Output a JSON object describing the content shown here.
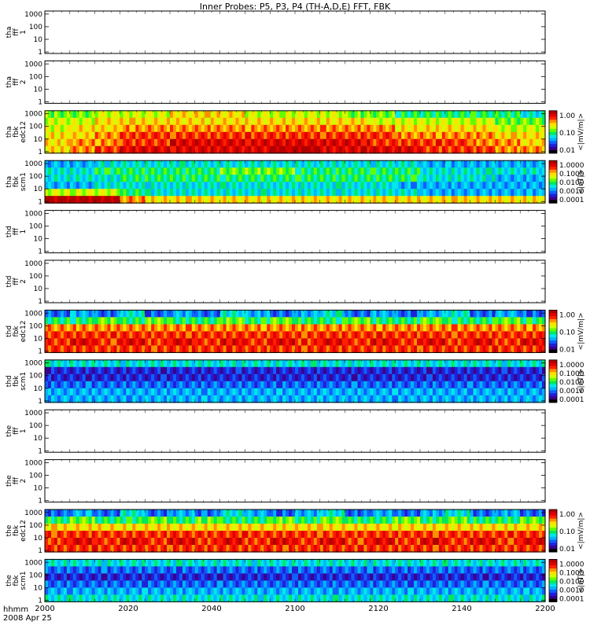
{
  "title": "Inner Probes: P5, P3, P4 (TH-A,D,E) FFT, FBK",
  "time_axis": {
    "ticks": [
      "2000",
      "2020",
      "2040",
      "2100",
      "2120",
      "2140",
      "2200"
    ],
    "unit_label": "hhmm",
    "date_label": "2008 Apr 25"
  },
  "y_ticks": [
    "1",
    "10",
    "100",
    "1000"
  ],
  "colorbars": {
    "edc12": {
      "ticks": [
        "1.00",
        "0.10",
        "0.01"
      ],
      "label": "<|mV/m|>"
    },
    "scm1": {
      "ticks": [
        "1.0000",
        "0.1000",
        "0.0100",
        "0.0010",
        "0.0001"
      ],
      "label": "<|nT|>"
    }
  },
  "palette": [
    "#000000",
    "#3a0090",
    "#2020d8",
    "#1060ff",
    "#00b4ff",
    "#00e8e8",
    "#00e860",
    "#60ff00",
    "#d0ff00",
    "#ffe000",
    "#ff9000",
    "#ff2000",
    "#e00000",
    "#b00000"
  ],
  "panels": [
    {
      "label": [
        "tha",
        "fff",
        "1"
      ],
      "kind": "empty"
    },
    {
      "label": [
        "tha",
        "fff",
        "2"
      ],
      "kind": "empty"
    },
    {
      "label": [
        "tha",
        "fbk",
        "edc12"
      ],
      "kind": "spectrogram",
      "colorbar": "edc12"
    },
    {
      "label": [
        "tha",
        "fbk",
        "scm1"
      ],
      "kind": "spectrogram",
      "colorbar": "scm1"
    },
    {
      "label": [
        "thd",
        "fff",
        "1"
      ],
      "kind": "empty"
    },
    {
      "label": [
        "thd",
        "fff",
        "2"
      ],
      "kind": "empty"
    },
    {
      "label": [
        "thd",
        "fbk",
        "edc12"
      ],
      "kind": "spectrogram",
      "colorbar": "edc12"
    },
    {
      "label": [
        "thd",
        "fbk",
        "scm1"
      ],
      "kind": "spectrogram",
      "colorbar": "scm1"
    },
    {
      "label": [
        "the",
        "fff",
        "1"
      ],
      "kind": "empty"
    },
    {
      "label": [
        "the",
        "fff",
        "2"
      ],
      "kind": "empty"
    },
    {
      "label": [
        "the",
        "fbk",
        "edc12"
      ],
      "kind": "spectrogram",
      "colorbar": "edc12"
    },
    {
      "label": [
        "the",
        "fbk",
        "scm1"
      ],
      "kind": "spectrogram",
      "colorbar": "scm1"
    }
  ],
  "chart_data": {
    "type": "heatmap",
    "title": "Inner Probes: P5, P3, P4 (TH-A,D,E) FFT, FBK",
    "x_ticks": [
      "2000",
      "2020",
      "2040",
      "2100",
      "2120",
      "2140",
      "2200"
    ],
    "y_scale": "log",
    "y_ticks": [
      "1",
      "10",
      "100",
      "1000"
    ],
    "channel_rows": 6,
    "series": [
      {
        "name": "tha fbk edc12",
        "levels": [
          [
            7,
            7,
            8,
            8,
            8,
            9,
            9,
            9,
            8,
            8,
            8,
            8,
            7,
            7,
            6,
            6,
            6,
            6,
            6,
            5
          ],
          [
            8,
            8,
            9,
            9,
            9,
            9,
            9,
            9,
            9,
            9,
            9,
            9,
            9,
            8,
            8,
            8,
            8,
            8,
            7,
            7
          ],
          [
            8,
            9,
            9,
            10,
            10,
            10,
            10,
            10,
            10,
            10,
            10,
            10,
            10,
            10,
            9,
            9,
            9,
            9,
            8,
            8
          ],
          [
            9,
            9,
            10,
            11,
            11,
            11,
            11,
            11,
            11,
            11,
            11,
            11,
            11,
            11,
            10,
            10,
            10,
            10,
            9,
            9
          ],
          [
            9,
            10,
            10,
            11,
            11,
            12,
            12,
            12,
            12,
            12,
            12,
            12,
            12,
            11,
            11,
            11,
            11,
            10,
            10,
            9
          ],
          [
            9,
            10,
            11,
            12,
            12,
            12,
            12,
            12,
            12,
            13,
            13,
            12,
            12,
            12,
            12,
            11,
            11,
            11,
            10,
            10
          ]
        ]
      },
      {
        "name": "tha fbk scm1",
        "levels": [
          [
            4,
            4,
            5,
            5,
            5,
            5,
            5,
            5,
            5,
            5,
            5,
            5,
            5,
            5,
            5,
            4,
            4,
            4,
            4,
            4
          ],
          [
            5,
            5,
            6,
            6,
            6,
            6,
            6,
            7,
            7,
            7,
            6,
            6,
            6,
            6,
            6,
            5,
            5,
            5,
            5,
            5
          ],
          [
            5,
            5,
            5,
            6,
            6,
            6,
            6,
            6,
            6,
            6,
            6,
            6,
            6,
            6,
            6,
            5,
            5,
            5,
            4,
            4
          ],
          [
            4,
            4,
            5,
            5,
            5,
            5,
            5,
            5,
            5,
            5,
            5,
            5,
            5,
            5,
            4,
            4,
            4,
            4,
            4,
            4
          ],
          [
            8,
            8,
            8,
            6,
            5,
            5,
            5,
            5,
            5,
            5,
            5,
            5,
            5,
            5,
            5,
            4,
            4,
            4,
            4,
            4
          ],
          [
            13,
            13,
            13,
            10,
            9,
            9,
            9,
            9,
            9,
            9,
            9,
            9,
            9,
            9,
            9,
            9,
            9,
            9,
            9,
            9
          ]
        ]
      },
      {
        "name": "thd fbk edc12",
        "levels": [
          [
            3,
            4,
            3,
            5,
            3,
            4,
            3,
            5,
            4,
            3,
            4,
            5,
            3,
            4,
            3,
            4,
            5,
            3,
            4,
            3
          ],
          [
            6,
            6,
            7,
            6,
            7,
            6,
            6,
            7,
            6,
            7,
            6,
            6,
            7,
            6,
            6,
            7,
            6,
            6,
            7,
            6
          ],
          [
            10,
            10,
            10,
            10,
            10,
            10,
            10,
            10,
            10,
            10,
            10,
            10,
            10,
            10,
            10,
            10,
            10,
            10,
            10,
            10
          ],
          [
            11,
            11,
            11,
            11,
            11,
            11,
            11,
            11,
            11,
            11,
            11,
            11,
            11,
            11,
            11,
            11,
            11,
            11,
            11,
            11
          ],
          [
            11,
            12,
            11,
            12,
            11,
            12,
            11,
            12,
            11,
            12,
            11,
            12,
            11,
            12,
            11,
            12,
            11,
            12,
            11,
            12
          ],
          [
            11,
            11,
            11,
            11,
            11,
            11,
            11,
            11,
            11,
            11,
            11,
            11,
            11,
            11,
            11,
            11,
            11,
            11,
            11,
            11
          ]
        ]
      },
      {
        "name": "thd fbk scm1",
        "levels": [
          [
            5,
            5,
            5,
            5,
            5,
            5,
            5,
            5,
            5,
            5,
            5,
            5,
            5,
            5,
            5,
            5,
            5,
            5,
            5,
            5
          ],
          [
            2,
            2,
            2,
            2,
            2,
            2,
            2,
            2,
            2,
            2,
            2,
            2,
            2,
            2,
            2,
            2,
            2,
            2,
            2,
            2
          ],
          [
            2,
            2,
            2,
            2,
            2,
            2,
            2,
            2,
            2,
            2,
            2,
            2,
            2,
            2,
            2,
            2,
            2,
            2,
            2,
            2
          ],
          [
            3,
            3,
            3,
            3,
            3,
            3,
            3,
            3,
            3,
            3,
            3,
            3,
            3,
            3,
            3,
            3,
            3,
            3,
            3,
            3
          ],
          [
            4,
            4,
            4,
            4,
            4,
            4,
            4,
            4,
            4,
            4,
            4,
            4,
            4,
            4,
            4,
            4,
            4,
            4,
            4,
            4
          ],
          [
            4,
            4,
            4,
            4,
            4,
            4,
            4,
            4,
            4,
            4,
            4,
            4,
            4,
            4,
            4,
            4,
            4,
            4,
            4,
            4
          ]
        ]
      },
      {
        "name": "the fbk edc12",
        "levels": [
          [
            3,
            4,
            3,
            5,
            3,
            4,
            3,
            5,
            4,
            3,
            4,
            5,
            3,
            4,
            3,
            4,
            5,
            3,
            4,
            3
          ],
          [
            6,
            7,
            6,
            6,
            7,
            6,
            7,
            6,
            6,
            7,
            6,
            7,
            6,
            6,
            7,
            6,
            7,
            6,
            6,
            7
          ],
          [
            9,
            9,
            9,
            9,
            9,
            9,
            9,
            9,
            9,
            9,
            9,
            9,
            9,
            9,
            9,
            9,
            9,
            9,
            9,
            9
          ],
          [
            11,
            11,
            11,
            11,
            11,
            11,
            11,
            11,
            11,
            11,
            11,
            11,
            11,
            11,
            11,
            11,
            11,
            11,
            11,
            11
          ],
          [
            11,
            12,
            11,
            12,
            11,
            12,
            11,
            12,
            11,
            12,
            11,
            12,
            11,
            12,
            11,
            12,
            11,
            12,
            11,
            12
          ],
          [
            11,
            11,
            11,
            11,
            11,
            11,
            11,
            11,
            11,
            11,
            11,
            11,
            11,
            11,
            11,
            11,
            11,
            11,
            11,
            11
          ]
        ]
      },
      {
        "name": "the fbk scm1",
        "levels": [
          [
            5,
            5,
            5,
            5,
            5,
            5,
            5,
            5,
            5,
            5,
            5,
            5,
            5,
            5,
            5,
            5,
            5,
            5,
            5,
            5
          ],
          [
            3,
            3,
            3,
            3,
            3,
            3,
            3,
            3,
            3,
            3,
            3,
            3,
            3,
            3,
            3,
            3,
            3,
            3,
            3,
            3
          ],
          [
            2,
            2,
            2,
            2,
            2,
            2,
            2,
            2,
            2,
            2,
            2,
            2,
            2,
            2,
            2,
            2,
            2,
            2,
            2,
            2
          ],
          [
            3,
            3,
            3,
            3,
            3,
            3,
            3,
            3,
            3,
            3,
            3,
            3,
            3,
            3,
            3,
            3,
            3,
            3,
            3,
            3
          ],
          [
            4,
            4,
            4,
            4,
            4,
            4,
            4,
            4,
            4,
            4,
            4,
            4,
            4,
            4,
            4,
            4,
            4,
            4,
            4,
            4
          ],
          [
            5,
            5,
            5,
            5,
            5,
            5,
            5,
            5,
            5,
            5,
            5,
            5,
            5,
            5,
            5,
            5,
            5,
            5,
            5,
            5
          ]
        ]
      }
    ]
  }
}
